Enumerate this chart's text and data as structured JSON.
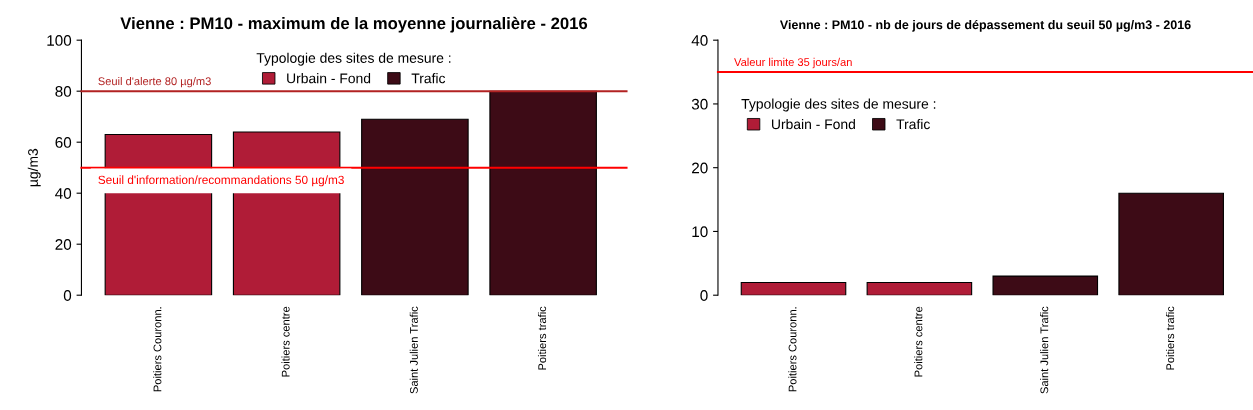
{
  "chart_data": [
    {
      "type": "bar",
      "title": "Vienne : PM10 - maximum de la moyenne journalière - 2016",
      "ylabel": "µg/m3",
      "legend_title": "Typologie des sites de mesure :",
      "categories": [
        "Poitiers Couronn.",
        "Poitiers centre",
        "Saint Julien Trafic",
        "Poitiers trafic"
      ],
      "series": [
        {
          "name": "Urbain - Fond",
          "color": "#b01c37",
          "values": [
            63,
            64,
            null,
            null
          ]
        },
        {
          "name": "Trafic",
          "color": "#3d0b16",
          "values": [
            null,
            null,
            69,
            80
          ]
        }
      ],
      "ylim": [
        0,
        100
      ],
      "yticks": [
        0,
        20,
        40,
        60,
        80,
        100
      ],
      "grid": false,
      "legend": "top",
      "ref_lines": [
        {
          "axis": "y",
          "value": 80,
          "label": "Seuil d'alerte 80 µg/m3",
          "color": "#b22222"
        },
        {
          "axis": "y",
          "value": 50,
          "label": "Seuil d'information/recommandations 50 µg/m3",
          "color": "#ff0000"
        }
      ]
    },
    {
      "type": "bar",
      "title": "Vienne : PM10 - nb de jours de dépassement du seuil 50 µg/m3 - 2016",
      "legend_title": "Typologie des sites de mesure :",
      "categories": [
        "Poitiers Couronn.",
        "Poitiers centre",
        "Saint Julien Trafic",
        "Poitiers trafic"
      ],
      "series": [
        {
          "name": "Urbain - Fond",
          "color": "#b01c37",
          "values": [
            2,
            2,
            null,
            null
          ]
        },
        {
          "name": "Trafic",
          "color": "#3d0b16",
          "values": [
            null,
            null,
            3,
            16
          ]
        }
      ],
      "ylim": [
        0,
        40
      ],
      "yticks": [
        0,
        10,
        20,
        30,
        40
      ],
      "grid": false,
      "legend": "top left",
      "ref_lines": [
        {
          "axis": "y",
          "value": 35,
          "label": "Valeur limite 35 jours/an",
          "color": "#ff0000"
        }
      ]
    }
  ]
}
